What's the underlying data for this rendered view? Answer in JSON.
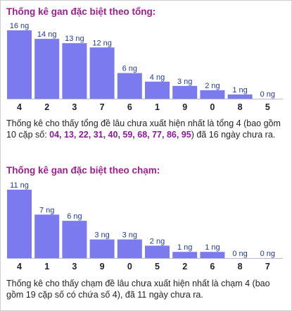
{
  "colors": {
    "bar": "#7b7bef",
    "title": "#9b1f8f",
    "highlight": "#8a1a9a",
    "value_label": "#1f3a93"
  },
  "sections": [
    {
      "title": "Thống kê gan đặc biệt theo tổng:",
      "desc_before": "Thống kê cho thấy tổng đề lâu chưa xuất hiện nhất là tổng 4 (bao gồm 10 cặp số: ",
      "desc_numbers": "04, 13, 22, 31, 40, 59, 68, 77, 86, 95",
      "desc_after": ") đã 16 ngày chưa ra."
    },
    {
      "title": "Thống kê gan đặc biệt theo chạm:",
      "desc_before": "Thống kê cho thấy chạm đề lâu chưa xuất hiện nhất là chạm 4 (bao gồm 19 cặp số có chứa số 4), đã 11 ngày chưa ra.",
      "desc_numbers": "",
      "desc_after": ""
    }
  ],
  "chart_data": [
    {
      "type": "bar",
      "categories": [
        "4",
        "2",
        "3",
        "7",
        "6",
        "1",
        "9",
        "0",
        "8",
        "5"
      ],
      "values": [
        16,
        14,
        13,
        12,
        6,
        4,
        3,
        2,
        1,
        0
      ],
      "value_labels": [
        "16 ng",
        "14 ng",
        "13 ng",
        "12 ng",
        "6 ng",
        "4 ng",
        "3 ng",
        "2 ng",
        "1 ng",
        "0 ng"
      ],
      "ylim": [
        0,
        16
      ]
    },
    {
      "type": "bar",
      "categories": [
        "4",
        "1",
        "3",
        "9",
        "0",
        "5",
        "2",
        "6",
        "8",
        "7"
      ],
      "values": [
        11,
        7,
        6,
        3,
        3,
        2,
        1,
        1,
        0,
        0
      ],
      "value_labels": [
        "11 ng",
        "7 ng",
        "6 ng",
        "3 ng",
        "3 ng",
        "2 ng",
        "1 ng",
        "1 ng",
        "0 ng",
        "0 ng"
      ],
      "ylim": [
        0,
        11
      ]
    }
  ]
}
